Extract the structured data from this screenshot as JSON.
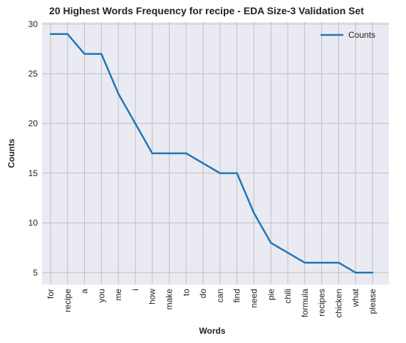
{
  "chart_data": {
    "type": "line",
    "title": "20 Highest Words Frequency for recipe - EDA Size-3 Validation Set",
    "xlabel": "Words",
    "ylabel": "Counts",
    "categories": [
      "for",
      "recipe",
      "a",
      "you",
      "me",
      "i",
      "how",
      "make",
      "to",
      "do",
      "can",
      "find",
      "need",
      "pie",
      "chili",
      "formula",
      "recipes",
      "chicken",
      "what",
      "please"
    ],
    "series": [
      {
        "name": "Counts",
        "values": [
          29,
          29,
          27,
          27,
          23,
          20,
          17,
          17,
          17,
          16,
          15,
          15,
          11,
          8,
          7,
          6,
          6,
          6,
          5,
          5
        ],
        "color": "#1f77b4"
      }
    ],
    "ylim": [
      3.8,
      30.2
    ],
    "yticks": [
      5,
      10,
      15,
      20,
      25,
      30
    ],
    "grid": true,
    "legend": "top-right",
    "background": "#eaeaf2",
    "grid_color": "#bfbfbf"
  }
}
